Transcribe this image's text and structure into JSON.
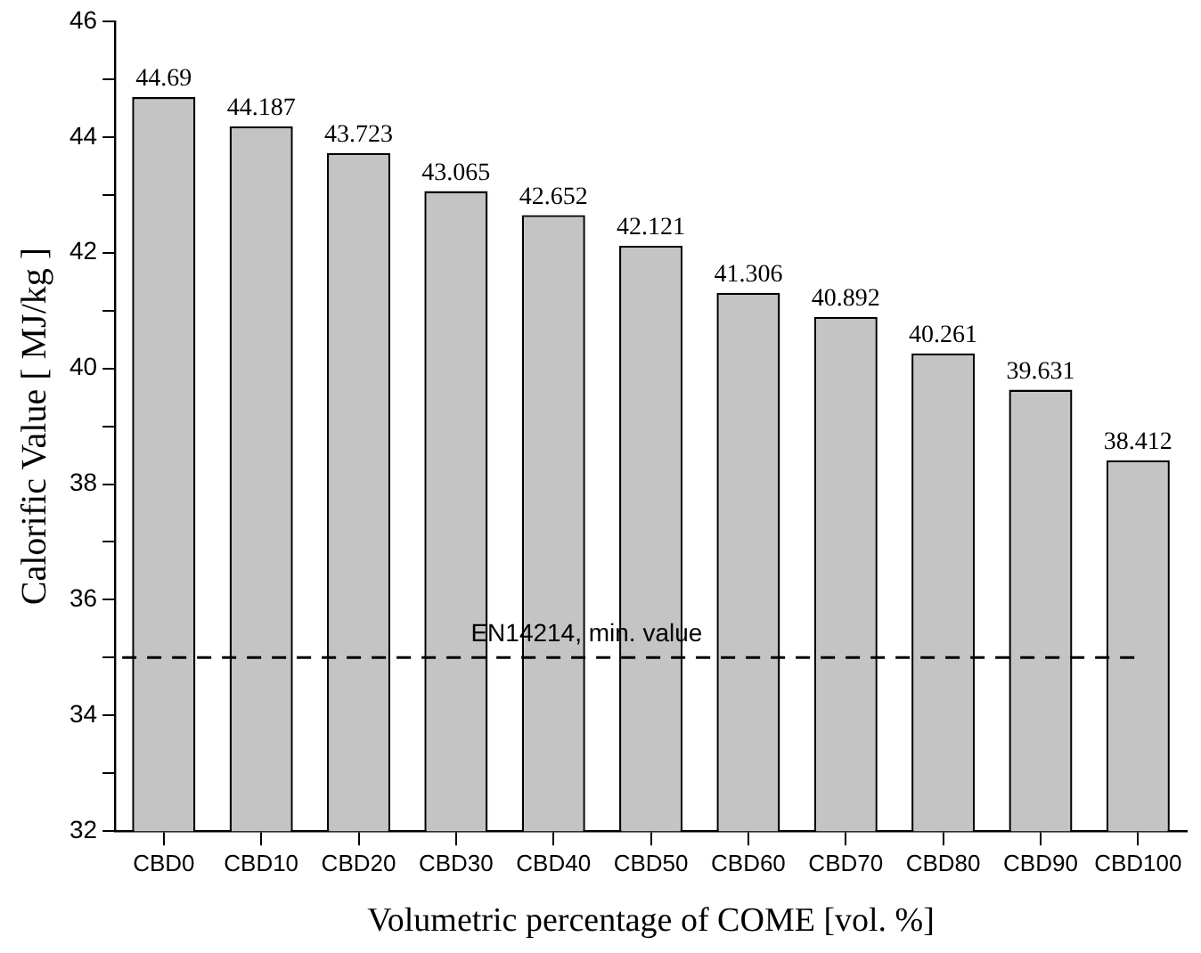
{
  "chart_data": {
    "type": "bar",
    "xlabel": "Volumetric percentage of COME [vol. %]",
    "ylabel": "Calorific Value [ MJ/kg ]",
    "categories": [
      "CBD0",
      "CBD10",
      "CBD20",
      "CBD30",
      "CBD40",
      "CBD50",
      "CBD60",
      "CBD70",
      "CBD80",
      "CBD90",
      "CBD100"
    ],
    "values": [
      44.69,
      44.187,
      43.723,
      43.065,
      42.652,
      42.121,
      41.306,
      40.892,
      40.261,
      39.631,
      38.412
    ],
    "color": "#c4c4c4",
    "ylim": [
      32,
      46
    ],
    "yticks": [
      32,
      {
        "value": 33,
        "label": null
      },
      34,
      {
        "value": 35,
        "label": null
      },
      36,
      {
        "value": 37,
        "label": null
      },
      38,
      {
        "value": 39,
        "label": null
      },
      40,
      {
        "value": 41,
        "label": null
      },
      42,
      {
        "value": 43,
        "label": null
      },
      44,
      {
        "value": 45,
        "label": null
      },
      46
    ],
    "ref_lines": [
      {
        "axis": "y",
        "value": 35,
        "label": "EN14214, min. value",
        "color": "#000000",
        "line_style": "dashed"
      }
    ],
    "data_labels": true,
    "grid": false,
    "legend": false
  }
}
